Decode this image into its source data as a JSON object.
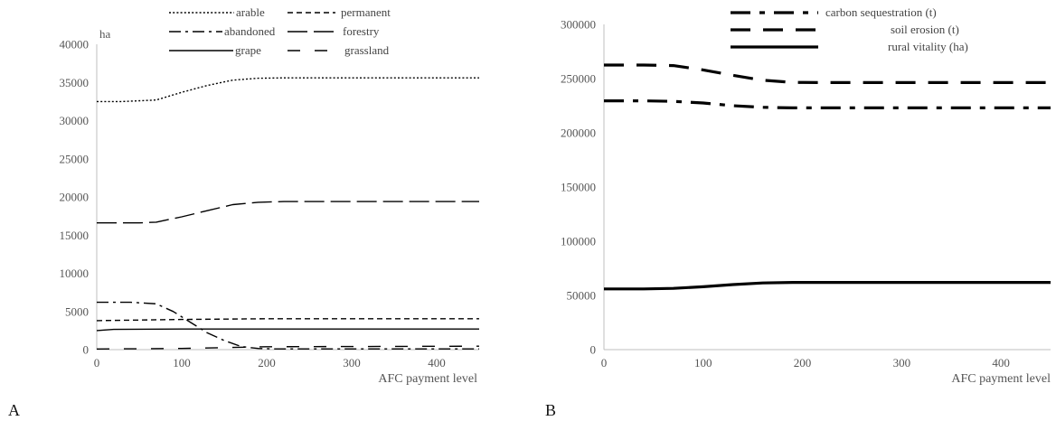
{
  "chart_data": [
    {
      "type": "line",
      "panel_label": "A",
      "unit_label": "ha",
      "xlabel": "AFC payment level",
      "xlim": [
        0,
        450
      ],
      "ylim": [
        0,
        40000
      ],
      "x_ticks": [
        0,
        100,
        200,
        300,
        400
      ],
      "y_ticks": [
        0,
        5000,
        10000,
        15000,
        20000,
        25000,
        30000,
        35000,
        40000
      ],
      "legend_position": "top",
      "series": [
        {
          "name": "arable",
          "style": "dotted",
          "x": [
            0,
            30,
            70,
            100,
            130,
            160,
            190,
            220,
            450
          ],
          "y": [
            32500,
            32500,
            32700,
            33700,
            34600,
            35300,
            35550,
            35600,
            35600
          ]
        },
        {
          "name": "permanent",
          "style": "dashed",
          "x": [
            0,
            100,
            200,
            450
          ],
          "y": [
            3800,
            3950,
            4050,
            4050
          ]
        },
        {
          "name": "abandoned",
          "style": "dashdot",
          "x": [
            0,
            40,
            70,
            90,
            110,
            130,
            150,
            170,
            190,
            210,
            450
          ],
          "y": [
            6200,
            6200,
            6000,
            5000,
            3600,
            2200,
            1200,
            400,
            150,
            100,
            100
          ]
        },
        {
          "name": "forestry",
          "style": "longdash",
          "x": [
            0,
            50,
            70,
            100,
            130,
            160,
            190,
            220,
            450
          ],
          "y": [
            16600,
            16600,
            16700,
            17400,
            18200,
            19000,
            19300,
            19400,
            19400
          ]
        },
        {
          "name": "grape",
          "style": "solid",
          "x": [
            0,
            20,
            100,
            450
          ],
          "y": [
            2500,
            2650,
            2700,
            2700
          ]
        },
        {
          "name": "grassland",
          "style": "dashsparse",
          "x": [
            0,
            100,
            200,
            450
          ],
          "y": [
            80,
            150,
            380,
            450
          ]
        }
      ]
    },
    {
      "type": "line",
      "panel_label": "B",
      "xlabel": "AFC payment level",
      "xlim": [
        0,
        450
      ],
      "ylim": [
        0,
        300000
      ],
      "x_ticks": [
        0,
        100,
        200,
        300,
        400
      ],
      "y_ticks": [
        0,
        50000,
        100000,
        150000,
        200000,
        250000,
        300000
      ],
      "legend_position": "top",
      "series": [
        {
          "name": "carbon sequestration (t)",
          "style": "dashdot",
          "x": [
            0,
            40,
            70,
            100,
            130,
            160,
            190,
            450
          ],
          "y": [
            229500,
            229500,
            229000,
            227500,
            225000,
            223500,
            223000,
            223000
          ]
        },
        {
          "name": "soil erosion (t)",
          "style": "dashed",
          "x": [
            0,
            40,
            70,
            100,
            130,
            160,
            190,
            220,
            450
          ],
          "y": [
            262500,
            262500,
            262000,
            258000,
            253000,
            248500,
            246500,
            246300,
            246300
          ]
        },
        {
          "name": "rural vitality (ha)",
          "style": "solid",
          "x": [
            0,
            40,
            70,
            100,
            130,
            160,
            190,
            220,
            450
          ],
          "y": [
            56000,
            56000,
            56500,
            58000,
            60000,
            61500,
            62000,
            62000,
            62000
          ]
        }
      ]
    }
  ]
}
